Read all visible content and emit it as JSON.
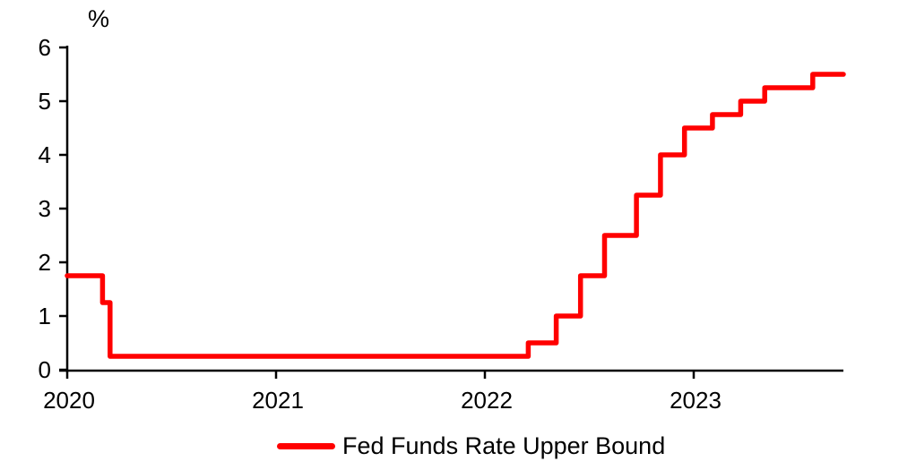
{
  "colors": {
    "line": "#ff0000",
    "axis": "#000000",
    "text": "#000000",
    "background": "#ffffff"
  },
  "chart_data": {
    "type": "line",
    "subtype": "step",
    "title": "",
    "xlabel": "",
    "ylabel": "%",
    "grid": false,
    "legend_position": "bottom-center",
    "legend": [
      {
        "label": "Fed Funds Rate Upper Bound",
        "color": "#ff0000"
      }
    ],
    "x_axis": {
      "min": 2020,
      "max": 2023.717,
      "ticks": [
        2020,
        2021,
        2022,
        2023
      ],
      "labels": [
        "2020",
        "2021",
        "2022",
        "2023"
      ]
    },
    "y_axis": {
      "min": 0,
      "max": 6,
      "ticks": [
        0,
        1,
        2,
        3,
        4,
        5,
        6
      ],
      "label": "%"
    },
    "series": [
      {
        "name": "Fed Funds Rate Upper Bound",
        "color": "#ff0000",
        "line_width": 5.5,
        "end_x": 2023.717,
        "points": [
          {
            "date": "2020-01-01",
            "x": 2020.0,
            "value": 1.75
          },
          {
            "date": "2020-03-03",
            "x": 2020.169,
            "value": 1.25
          },
          {
            "date": "2020-03-16",
            "x": 2020.205,
            "value": 0.25
          },
          {
            "date": "2022-03-17",
            "x": 2022.208,
            "value": 0.5
          },
          {
            "date": "2022-05-05",
            "x": 2022.342,
            "value": 1.0
          },
          {
            "date": "2022-06-16",
            "x": 2022.458,
            "value": 1.75
          },
          {
            "date": "2022-07-28",
            "x": 2022.573,
            "value": 2.5
          },
          {
            "date": "2022-09-22",
            "x": 2022.726,
            "value": 3.25
          },
          {
            "date": "2022-11-03",
            "x": 2022.841,
            "value": 4.0
          },
          {
            "date": "2022-12-15",
            "x": 2022.956,
            "value": 4.5
          },
          {
            "date": "2023-02-02",
            "x": 2023.09,
            "value": 4.75
          },
          {
            "date": "2023-03-23",
            "x": 2023.225,
            "value": 5.0
          },
          {
            "date": "2023-05-04",
            "x": 2023.34,
            "value": 5.25
          },
          {
            "date": "2023-07-27",
            "x": 2023.57,
            "value": 5.5
          }
        ]
      }
    ]
  }
}
